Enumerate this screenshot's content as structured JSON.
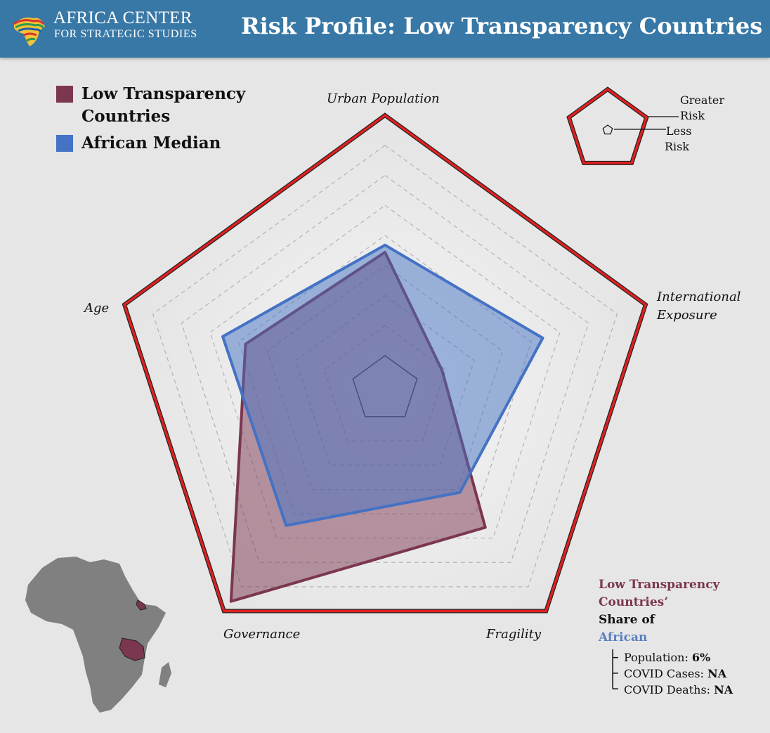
{
  "header": {
    "logo_name": "AFRICA CENTER",
    "logo_subtitle": "FOR STRATEGIC STUDIES",
    "title": "Risk Profile: Low Transparency Countries"
  },
  "colors": {
    "header_bg": "#3878a6",
    "low_transparency": "#7b3650",
    "african_median": "#4472c4",
    "max_outline": "#e02020"
  },
  "legend": [
    {
      "label": "Low Transparency Countries",
      "line1": "Low Transparency",
      "line2": "Countries",
      "color": "#7b3650"
    },
    {
      "label": "African Median",
      "line1": "African Median",
      "line2": "",
      "color": "#4472c4"
    }
  ],
  "risk_key": {
    "greater_1": "Greater",
    "greater_2": "Risk",
    "less_1": "Less",
    "less_2": "Risk"
  },
  "share": {
    "line1": "Low Transparency",
    "line2": "Countries’",
    "line3": "Share of",
    "line4": "African",
    "stats": [
      {
        "label": "Population:",
        "value": "6%"
      },
      {
        "label": "COVID Cases:",
        "value": "NA"
      },
      {
        "label": "COVID Deaths:",
        "value": "NA"
      }
    ]
  },
  "chart_data": {
    "type": "radar",
    "axes": [
      "Urban Population",
      "International Exposure",
      "Fragility",
      "Governance",
      "Age"
    ],
    "axis_label_lines": [
      [
        "Urban Population"
      ],
      [
        "International",
        "Exposure"
      ],
      [
        "Fragility"
      ],
      [
        "Governance"
      ],
      [
        "Age"
      ]
    ],
    "rmin": 0,
    "rmax": 1,
    "grid_levels": 8,
    "grid": "dashed",
    "legend_position": "top-left",
    "series": [
      {
        "name": "Low Transparency Countries",
        "values": [
          0.43,
          0.11,
          0.57,
          0.95,
          0.47
        ]
      },
      {
        "name": "African Median",
        "values": [
          0.46,
          0.55,
          0.39,
          0.56,
          0.57
        ]
      }
    ]
  },
  "map": {
    "icon": "africa-map-icon",
    "highlight_color": "#7b3650"
  }
}
